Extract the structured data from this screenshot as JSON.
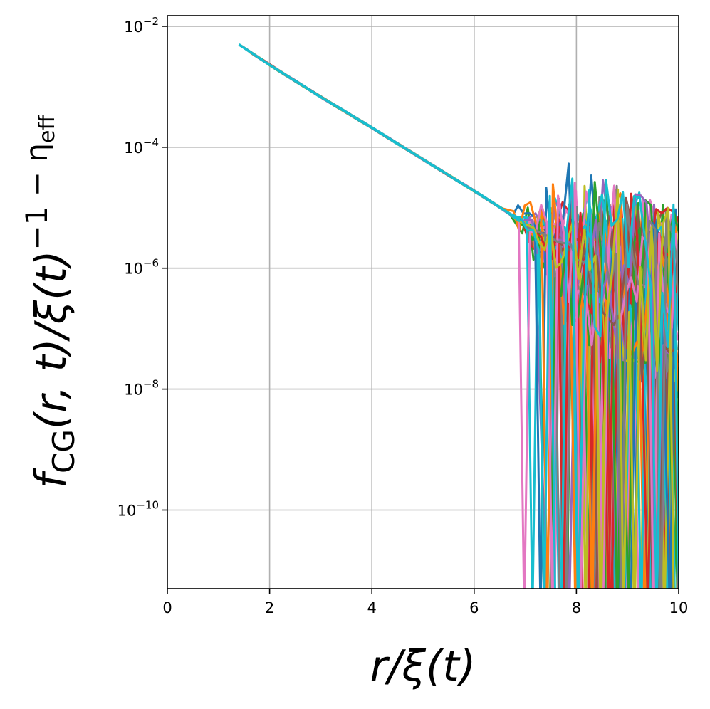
{
  "chart_data": {
    "type": "line",
    "xlabel": "r/ξ(t)",
    "ylabel": {
      "f": "f",
      "f_sub": "CG",
      "body": "(r, t)/ξ(t)",
      "sup": "−1 − η",
      "sup_sub": "eff"
    },
    "x_scale": "linear",
    "y_scale": "log",
    "xlim": [
      0,
      10
    ],
    "ylim": [
      5e-12,
      0.015
    ],
    "xticks": [
      {
        "value": 0,
        "label": "0"
      },
      {
        "value": 2,
        "label": "2"
      },
      {
        "value": 4,
        "label": "4"
      },
      {
        "value": 6,
        "label": "6"
      },
      {
        "value": 8,
        "label": "8"
      },
      {
        "value": 10,
        "label": "10"
      }
    ],
    "yticks": [
      {
        "exp": -2,
        "base": "10",
        "sup": "−2"
      },
      {
        "exp": -4,
        "base": "10",
        "sup": "−4"
      },
      {
        "exp": -6,
        "base": "10",
        "sup": "−6"
      },
      {
        "exp": -8,
        "base": "10",
        "sup": "−8"
      },
      {
        "exp": -10,
        "base": "10",
        "sup": "−10"
      }
    ],
    "grid": true,
    "legend": "none",
    "series_count": 40,
    "palette": [
      "#1f77b4",
      "#ff7f0e",
      "#2ca02c",
      "#d62728",
      "#9467bd",
      "#8c564b",
      "#e377c2",
      "#7f7f7f",
      "#bcbd22",
      "#17becf"
    ],
    "collapse_curve": {
      "x": [
        1.4,
        2.0,
        3.0,
        4.0,
        5.0,
        6.0,
        6.6,
        7.0,
        7.5,
        8.0,
        8.5,
        9.0,
        9.5,
        10.0
      ],
      "y": [
        0.005,
        0.0023,
        0.00068,
        0.00021,
        6.3e-05,
        1.9e-05,
        9e-06,
        5.2e-06,
        3.2e-06,
        1.9e-06,
        1.2e-06,
        8e-07,
        5.5e-07,
        3.8e-07
      ]
    },
    "noise_onset_x": [
      6.6,
      7.8
    ]
  }
}
